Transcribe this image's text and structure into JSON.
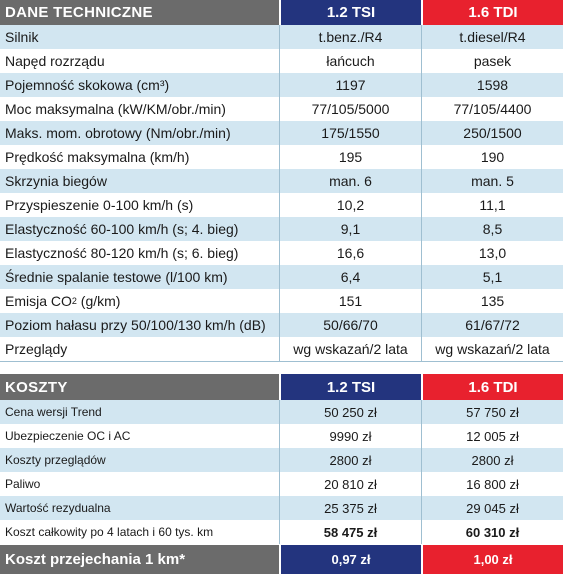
{
  "tech": {
    "header": {
      "title": "DANE TECHNICZNE",
      "col1": "1.2 TSI",
      "col2": "1.6 TDI"
    },
    "rows": [
      {
        "label": "Silnik",
        "v1": "t.benz./R4",
        "v2": "t.diesel/R4"
      },
      {
        "label": "Napęd rozrządu",
        "v1": "łańcuch",
        "v2": "pasek"
      },
      {
        "label": "Pojemność skokowa (cm³)",
        "v1": "1197",
        "v2": "1598"
      },
      {
        "label": "Moc maksymalna (kW/KM/obr./min)",
        "v1": "77/105/5000",
        "v2": "77/105/4400"
      },
      {
        "label": "Maks. mom. obrotowy (Nm/obr./min)",
        "v1": "175/1550",
        "v2": "250/1500"
      },
      {
        "label": "Prędkość maksymalna (km/h)",
        "v1": "195",
        "v2": "190"
      },
      {
        "label": "Skrzynia biegów",
        "v1": "man. 6",
        "v2": "man. 5"
      },
      {
        "label": "Przyspieszenie 0-100 km/h (s)",
        "v1": "10,2",
        "v2": "11,1"
      },
      {
        "label": "Elastyczność 60-100 km/h (s; 4. bieg)",
        "v1": "9,1",
        "v2": "8,5"
      },
      {
        "label": "Elastyczność 80-120 km/h (s; 6. bieg)",
        "v1": "16,6",
        "v2": "13,0"
      },
      {
        "label": "Średnie spalanie testowe (l/100 km)",
        "v1": "6,4",
        "v2": "5,1"
      },
      {
        "label_a": "Emisja CO",
        "label_sub": "2",
        "label_b": " (g/km)",
        "v1": "151",
        "v2": "135"
      },
      {
        "label": "Poziom hałasu przy 50/100/130 km/h (dB)",
        "v1": "50/66/70",
        "v2": "61/67/72"
      },
      {
        "label": "Przeglądy",
        "v1": "wg wskazań/2 lata",
        "v2": "wg wskazań/2 lata"
      }
    ]
  },
  "costs": {
    "header": {
      "title": "KOSZTY",
      "col1": "1.2 TSI",
      "col2": "1.6 TDI"
    },
    "rows": [
      {
        "label": "Cena wersji Trend",
        "v1": "50 250 zł",
        "v2": "57 750 zł"
      },
      {
        "label": "Ubezpieczenie OC i AC",
        "v1": "9990 zł",
        "v2": "12 005 zł"
      },
      {
        "label": "Koszty przeglądów",
        "v1": "2800 zł",
        "v2": "2800 zł"
      },
      {
        "label": "Paliwo",
        "v1": "20 810 zł",
        "v2": "16 800 zł"
      },
      {
        "label": "Wartość rezydualna",
        "v1": "25 375 zł",
        "v2": "29 045 zł"
      },
      {
        "label": "Koszt całkowity po 4 latach i 60 tys. km",
        "v1": "58 475 zł",
        "v2": "60 310 zł"
      }
    ],
    "final": {
      "label": "Koszt przejechania 1 km*",
      "v1": "0,97 zł",
      "v2": "1,00 zł"
    }
  }
}
